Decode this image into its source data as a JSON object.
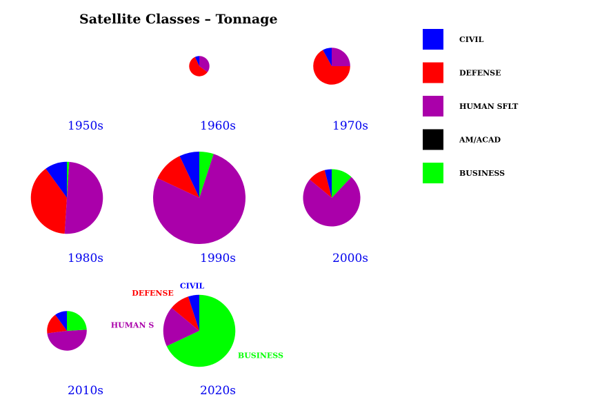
{
  "chart_data": {
    "type": "pie",
    "title": "Satellite Classes – Tonnage",
    "categories": [
      "CIVIL",
      "DEFENSE",
      "HUMAN SFLT",
      "AM/ACAD",
      "BUSINESS"
    ],
    "colors": {
      "CIVIL": "#0000ff",
      "DEFENSE": "#ff0000",
      "HUMAN SFLT": "#aa00aa",
      "AM/ACAD": "#000000",
      "BUSINESS": "#00ff00"
    },
    "legend_position": "top-right",
    "pies": [
      {
        "decade": "1950s",
        "size": 0,
        "values": []
      },
      {
        "decade": "1960s",
        "size": 0.22,
        "values": {
          "CIVIL": 7,
          "DEFENSE": 58,
          "HUMAN SFLT": 35,
          "AM/ACAD": 0,
          "BUSINESS": 0
        }
      },
      {
        "decade": "1970s",
        "size": 0.4,
        "values": {
          "CIVIL": 8,
          "DEFENSE": 67,
          "HUMAN SFLT": 25,
          "AM/ACAD": 0,
          "BUSINESS": 0
        }
      },
      {
        "decade": "1980s",
        "size": 0.78,
        "values": {
          "CIVIL": 10,
          "DEFENSE": 39,
          "HUMAN SFLT": 50,
          "AM/ACAD": 0,
          "BUSINESS": 1
        }
      },
      {
        "decade": "1990s",
        "size": 1.0,
        "values": {
          "CIVIL": 7,
          "DEFENSE": 11,
          "HUMAN SFLT": 77,
          "AM/ACAD": 0,
          "BUSINESS": 5
        }
      },
      {
        "decade": "2000s",
        "size": 0.62,
        "values": {
          "CIVIL": 4,
          "DEFENSE": 10,
          "HUMAN SFLT": 74,
          "AM/ACAD": 0,
          "BUSINESS": 12
        }
      },
      {
        "decade": "2010s",
        "size": 0.43,
        "values": {
          "CIVIL": 10,
          "DEFENSE": 17,
          "HUMAN SFLT": 49,
          "AM/ACAD": 0,
          "BUSINESS": 24
        }
      },
      {
        "decade": "2020s",
        "size": 0.78,
        "values": {
          "CIVIL": 5,
          "DEFENSE": 9,
          "HUMAN SFLT": 18,
          "AM/ACAD": 0,
          "BUSINESS": 68
        },
        "slice_labels": [
          "CIVIL",
          "DEFENSE",
          "HUMAN S",
          "",
          "BUSINESS"
        ]
      }
    ]
  }
}
